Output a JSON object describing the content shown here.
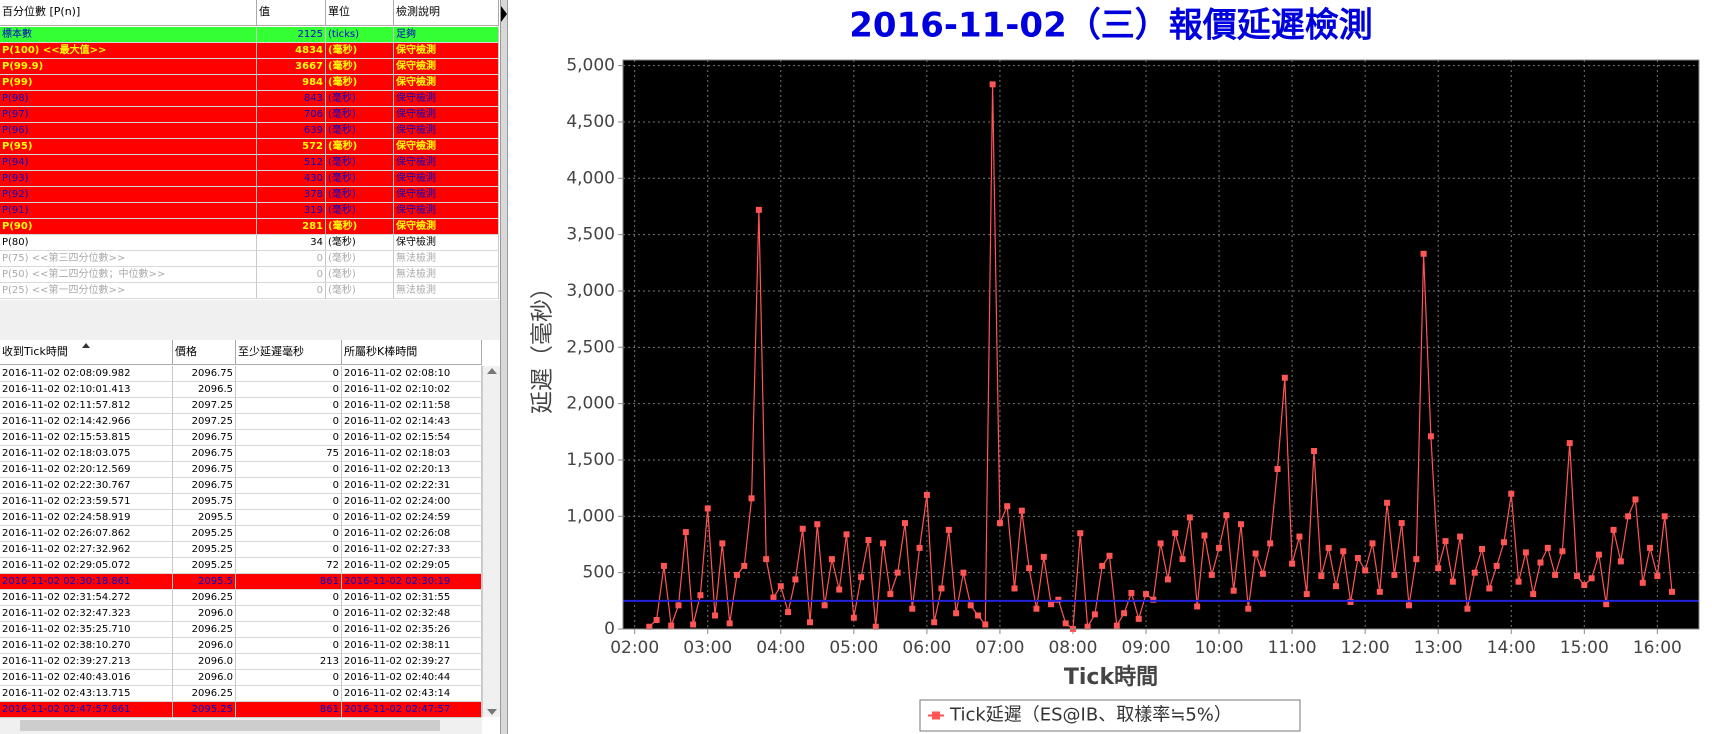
{
  "percentile_table": {
    "headers": [
      "百分位數 [P(n)]",
      "值",
      "單位",
      "檢測說明"
    ],
    "rows": [
      {
        "cells": [
          "標本數",
          2125,
          "(ticks)",
          "足夠"
        ],
        "background": "#33ff33",
        "color": "#0000cc",
        "bold": false
      },
      {
        "cells": [
          "P(100)  <<最大值>>",
          4834,
          "(毫秒)",
          "保守檢測"
        ],
        "background": "#ff0000",
        "color": "#ffff00",
        "bold": true
      },
      {
        "cells": [
          "P(99.9)",
          3667,
          "(毫秒)",
          "保守檢測"
        ],
        "background": "#ff0000",
        "color": "#ffff00",
        "bold": true
      },
      {
        "cells": [
          "P(99)",
          984,
          "(毫秒)",
          "保守檢測"
        ],
        "background": "#ff0000",
        "color": "#ffff00",
        "bold": true
      },
      {
        "cells": [
          "P(98)",
          843,
          "(毫秒)",
          "保守檢測"
        ],
        "background": "#ff0000",
        "color": "#0000cc",
        "bold": false
      },
      {
        "cells": [
          "P(97)",
          706,
          "(毫秒)",
          "保守檢測"
        ],
        "background": "#ff0000",
        "color": "#0000cc",
        "bold": false
      },
      {
        "cells": [
          "P(96)",
          639,
          "(毫秒)",
          "保守檢測"
        ],
        "background": "#ff0000",
        "color": "#0000cc",
        "bold": false
      },
      {
        "cells": [
          "P(95)",
          572,
          "(毫秒)",
          "保守檢測"
        ],
        "background": "#ff0000",
        "color": "#ffff00",
        "bold": true
      },
      {
        "cells": [
          "P(94)",
          512,
          "(毫秒)",
          "保守檢測"
        ],
        "background": "#ff0000",
        "color": "#0000cc",
        "bold": false
      },
      {
        "cells": [
          "P(93)",
          430,
          "(毫秒)",
          "保守檢測"
        ],
        "background": "#ff0000",
        "color": "#0000cc",
        "bold": false
      },
      {
        "cells": [
          "P(92)",
          378,
          "(毫秒)",
          "保守檢測"
        ],
        "background": "#ff0000",
        "color": "#0000cc",
        "bold": false
      },
      {
        "cells": [
          "P(91)",
          319,
          "(毫秒)",
          "保守檢測"
        ],
        "background": "#ff0000",
        "color": "#0000cc",
        "bold": false
      },
      {
        "cells": [
          "P(90)",
          281,
          "(毫秒)",
          "保守檢測"
        ],
        "background": "#ff0000",
        "color": "#ffff00",
        "bold": true
      },
      {
        "cells": [
          "P(80)",
          34,
          "(毫秒)",
          "保守檢測"
        ],
        "background": "#ffffff",
        "color": "#000000",
        "bold": false
      },
      {
        "cells": [
          "P(75)  <<第三四分位數>>",
          0,
          "(毫秒)",
          "無法檢測"
        ],
        "background": "#ffffff",
        "color": "#aaaaaa",
        "bold": false
      },
      {
        "cells": [
          "P(50)  <<第二四分位數；中位數>>",
          0,
          "(毫秒)",
          "無法檢測"
        ],
        "background": "#ffffff",
        "color": "#aaaaaa",
        "bold": false
      },
      {
        "cells": [
          "P(25)  <<第一四分位數>>",
          0,
          "(毫秒)",
          "無法檢測"
        ],
        "background": "#ffffff",
        "color": "#aaaaaa",
        "bold": false
      }
    ]
  },
  "tick_table": {
    "headers": [
      "收到Tick時間",
      "價格",
      "至少延遲毫秒",
      "所屬秒K棒時間"
    ],
    "rows": [
      {
        "cells": [
          "2016-11-02 02:08:09.982",
          2096.75,
          0,
          "2016-11-02 02:08:10"
        ]
      },
      {
        "cells": [
          "2016-11-02 02:10:01.413",
          2096.5,
          0,
          "2016-11-02 02:10:02"
        ]
      },
      {
        "cells": [
          "2016-11-02 02:11:57.812",
          2097.25,
          0,
          "2016-11-02 02:11:58"
        ]
      },
      {
        "cells": [
          "2016-11-02 02:14:42.966",
          2097.25,
          0,
          "2016-11-02 02:14:43"
        ]
      },
      {
        "cells": [
          "2016-11-02 02:15:53.815",
          2096.75,
          0,
          "2016-11-02 02:15:54"
        ]
      },
      {
        "cells": [
          "2016-11-02 02:18:03.075",
          2096.75,
          75,
          "2016-11-02 02:18:03"
        ]
      },
      {
        "cells": [
          "2016-11-02 02:20:12.569",
          2096.75,
          0,
          "2016-11-02 02:20:13"
        ]
      },
      {
        "cells": [
          "2016-11-02 02:22:30.767",
          2096.75,
          0,
          "2016-11-02 02:22:31"
        ]
      },
      {
        "cells": [
          "2016-11-02 02:23:59.571",
          2095.75,
          0,
          "2016-11-02 02:24:00"
        ]
      },
      {
        "cells": [
          "2016-11-02 02:24:58.919",
          2095.5,
          0,
          "2016-11-02 02:24:59"
        ]
      },
      {
        "cells": [
          "2016-11-02 02:26:07.862",
          2095.25,
          0,
          "2016-11-02 02:26:08"
        ]
      },
      {
        "cells": [
          "2016-11-02 02:27:32.962",
          2095.25,
          0,
          "2016-11-02 02:27:33"
        ]
      },
      {
        "cells": [
          "2016-11-02 02:29:05.072",
          2095.25,
          72,
          "2016-11-02 02:29:05"
        ]
      },
      {
        "cells": [
          "2016-11-02 02:30:18.861",
          2095.5,
          861,
          "2016-11-02 02:30:19"
        ],
        "background": "#ff0000",
        "color": "#0000cc"
      },
      {
        "cells": [
          "2016-11-02 02:31:54.272",
          2096.25,
          0,
          "2016-11-02 02:31:55"
        ]
      },
      {
        "cells": [
          "2016-11-02 02:32:47.323",
          "2096.0",
          0,
          "2016-11-02 02:32:48"
        ]
      },
      {
        "cells": [
          "2016-11-02 02:35:25.710",
          2096.25,
          0,
          "2016-11-02 02:35:26"
        ]
      },
      {
        "cells": [
          "2016-11-02 02:38:10.270",
          "2096.0",
          0,
          "2016-11-02 02:38:11"
        ]
      },
      {
        "cells": [
          "2016-11-02 02:39:27.213",
          "2096.0",
          213,
          "2016-11-02 02:39:27"
        ]
      },
      {
        "cells": [
          "2016-11-02 02:40:43.016",
          "2096.0",
          0,
          "2016-11-02 02:40:44"
        ]
      },
      {
        "cells": [
          "2016-11-02 02:43:13.715",
          2096.25,
          0,
          "2016-11-02 02:43:14"
        ]
      },
      {
        "cells": [
          "2016-11-02 02:47:57.861",
          2095.25,
          861,
          "2016-11-02 02:47:57"
        ],
        "background": "#ff0000",
        "color": "#0000cc"
      }
    ]
  },
  "chart_data": {
    "type": "line",
    "title": "2016-11-02（三）報價延遲檢測",
    "x_label": "Tick時間",
    "y_label": "延遲（毫秒）",
    "x": [
      2.2,
      2.3,
      2.4,
      2.5,
      2.6,
      2.7,
      2.8,
      2.9,
      3,
      3.1,
      3.2,
      3.3,
      3.4,
      3.5,
      3.6,
      3.7,
      3.8,
      3.9,
      4,
      4.1,
      4.2,
      4.3,
      4.4,
      4.5,
      4.6,
      4.7,
      4.8,
      4.9,
      5,
      5.1,
      5.2,
      5.3,
      5.4,
      5.5,
      5.6,
      5.7,
      5.8,
      5.9,
      6,
      6.1,
      6.2,
      6.3,
      6.4,
      6.5,
      6.6,
      6.7,
      6.8,
      6.9,
      7,
      7.1,
      7.2,
      7.3,
      7.4,
      7.5,
      7.6,
      7.7,
      7.8,
      7.9,
      8,
      8.1,
      8.2,
      8.3,
      8.4,
      8.5,
      8.6,
      8.7,
      8.8,
      8.9,
      9,
      9.1,
      9.2,
      9.3,
      9.4,
      9.5,
      9.6,
      9.7,
      9.8,
      9.9,
      10,
      10.1,
      10.2,
      10.3,
      10.4,
      10.5,
      10.6,
      10.7,
      10.8,
      10.9,
      11,
      11.1,
      11.2,
      11.3,
      11.4,
      11.5,
      11.6,
      11.7,
      11.8,
      11.9,
      12,
      12.1,
      12.2,
      12.3,
      12.4,
      12.5,
      12.6,
      12.7,
      12.8,
      12.9,
      13,
      13.1,
      13.2,
      13.3,
      13.4,
      13.5,
      13.6,
      13.7,
      13.8,
      13.9,
      14,
      14.1,
      14.2,
      14.3,
      14.4,
      14.5,
      14.6,
      14.7,
      14.8,
      14.9,
      15,
      15.1,
      15.2,
      15.3,
      15.4,
      15.5,
      15.6,
      15.7,
      15.8,
      15.9,
      16,
      16.1,
      16.2
    ],
    "series": [
      {
        "name": "Tick延遲（ES@IB、取樣率≒5%）",
        "color": "#ff5555",
        "values": [
          20,
          80,
          560,
          30,
          210,
          860,
          40,
          300,
          1070,
          120,
          760,
          50,
          480,
          560,
          1160,
          3720,
          620,
          280,
          380,
          150,
          440,
          890,
          60,
          930,
          210,
          620,
          350,
          840,
          100,
          460,
          790,
          20,
          760,
          310,
          500,
          940,
          180,
          720,
          1190,
          60,
          360,
          880,
          140,
          500,
          210,
          120,
          40,
          4834,
          940,
          1090,
          360,
          1050,
          540,
          180,
          640,
          220,
          260,
          50,
          0,
          850,
          20,
          130,
          560,
          650,
          30,
          140,
          320,
          90,
          310,
          260,
          760,
          440,
          850,
          620,
          990,
          200,
          830,
          480,
          720,
          1010,
          340,
          930,
          180,
          670,
          490,
          760,
          1420,
          2230,
          580,
          820,
          310,
          1580,
          470,
          720,
          380,
          690,
          240,
          630,
          520,
          760,
          330,
          1120,
          480,
          940,
          210,
          620,
          3330,
          1710,
          540,
          780,
          420,
          820,
          180,
          500,
          710,
          360,
          560,
          770,
          1200,
          420,
          680,
          310,
          590,
          720,
          480,
          690,
          1650,
          470,
          390,
          450,
          660,
          220,
          880,
          600,
          1000,
          1150,
          410,
          720,
          470,
          1000,
          330
        ]
      }
    ],
    "reference_line": {
      "value": 250,
      "color": "#2222dd"
    },
    "xlim": [
      1.84,
      16.57
    ],
    "xticks": [
      {
        "value": 2,
        "label": "02:00"
      },
      {
        "value": 3,
        "label": "03:00"
      },
      {
        "value": 4,
        "label": "04:00"
      },
      {
        "value": 5,
        "label": "05:00"
      },
      {
        "value": 6,
        "label": "06:00"
      },
      {
        "value": 7,
        "label": "07:00"
      },
      {
        "value": 8,
        "label": "08:00"
      },
      {
        "value": 9,
        "label": "09:00"
      },
      {
        "value": 10,
        "label": "10:00"
      },
      {
        "value": 11,
        "label": "11:00"
      },
      {
        "value": 12,
        "label": "12:00"
      },
      {
        "value": 13,
        "label": "13:00"
      },
      {
        "value": 14,
        "label": "14:00"
      },
      {
        "value": 15,
        "label": "15:00"
      },
      {
        "value": 16,
        "label": "16:00"
      }
    ],
    "ylim": [
      0,
      5050
    ],
    "yticks": [
      0,
      500,
      {
        "value": 1000,
        "label": "1,000"
      },
      {
        "value": 1500,
        "label": "1,500"
      },
      {
        "value": 2000,
        "label": "2,000"
      },
      {
        "value": 2500,
        "label": "2,500"
      },
      {
        "value": 3000,
        "label": "3,000"
      },
      {
        "value": 3500,
        "label": "3,500"
      },
      {
        "value": 4000,
        "label": "4,000"
      },
      {
        "value": 4500,
        "label": "4,500"
      },
      {
        "value": 5000,
        "label": "5,000"
      }
    ],
    "grid": true,
    "legend": "bottom",
    "plot_background": "#000000"
  }
}
